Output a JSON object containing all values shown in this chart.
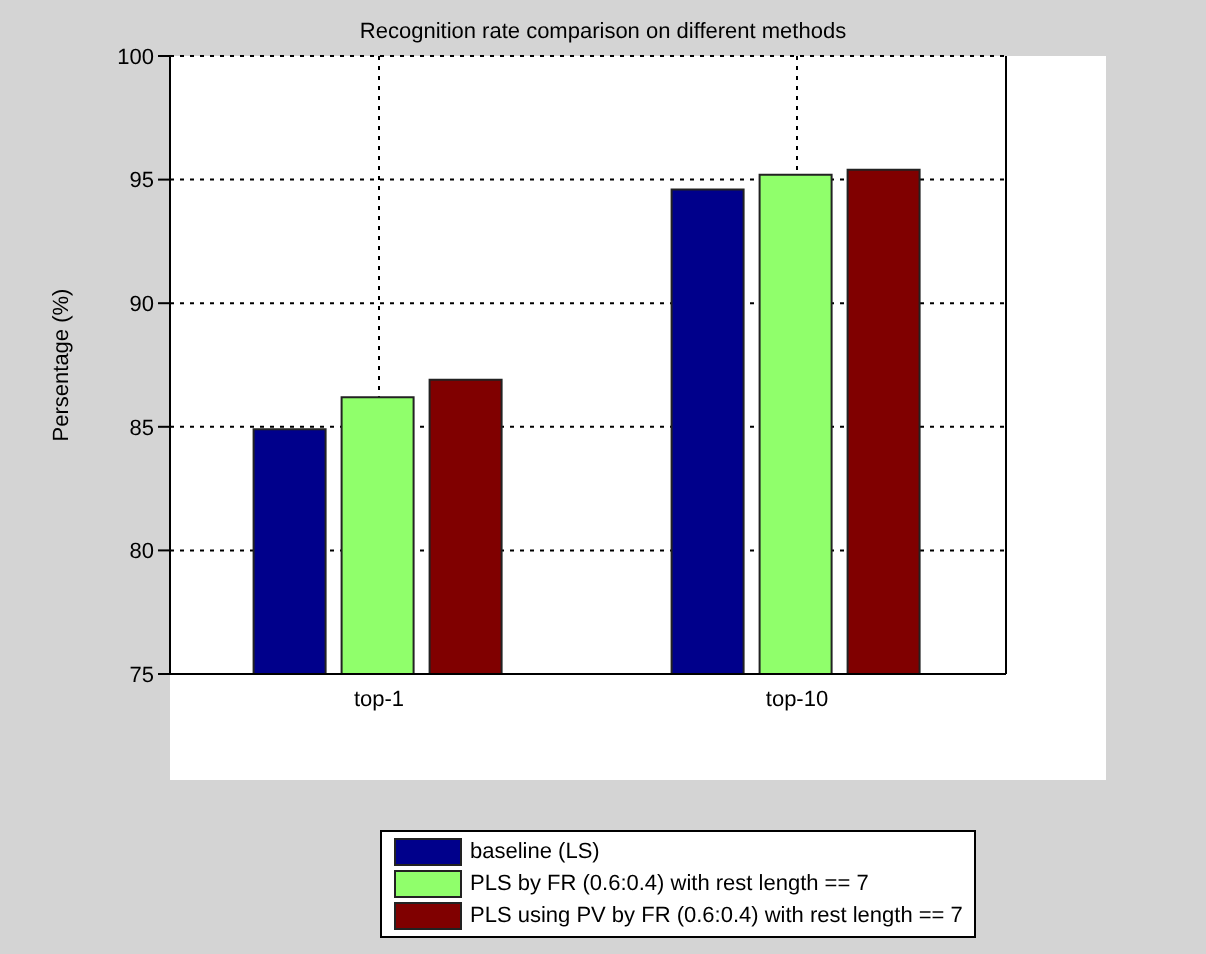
{
  "chart_data": {
    "type": "bar",
    "title": "Recognition rate comparison on different methods",
    "ylabel": "Persentage (%)",
    "categories": [
      "top-1",
      "top-10"
    ],
    "series": [
      {
        "name": "baseline (LS)",
        "color": "#00008b",
        "values": [
          84.9,
          94.6
        ]
      },
      {
        "name": "PLS by FR (0.6:0.4) with rest length == 7",
        "color": "#90ff6b",
        "values": [
          86.2,
          95.2
        ]
      },
      {
        "name": "PLS using PV by FR (0.6:0.4) with rest length == 7",
        "color": "#800000",
        "values": [
          86.9,
          95.4
        ]
      }
    ],
    "ylim": [
      75,
      100
    ],
    "yticks": [
      75,
      80,
      85,
      90,
      95,
      100
    ],
    "grid": true,
    "legend": "bottom"
  }
}
